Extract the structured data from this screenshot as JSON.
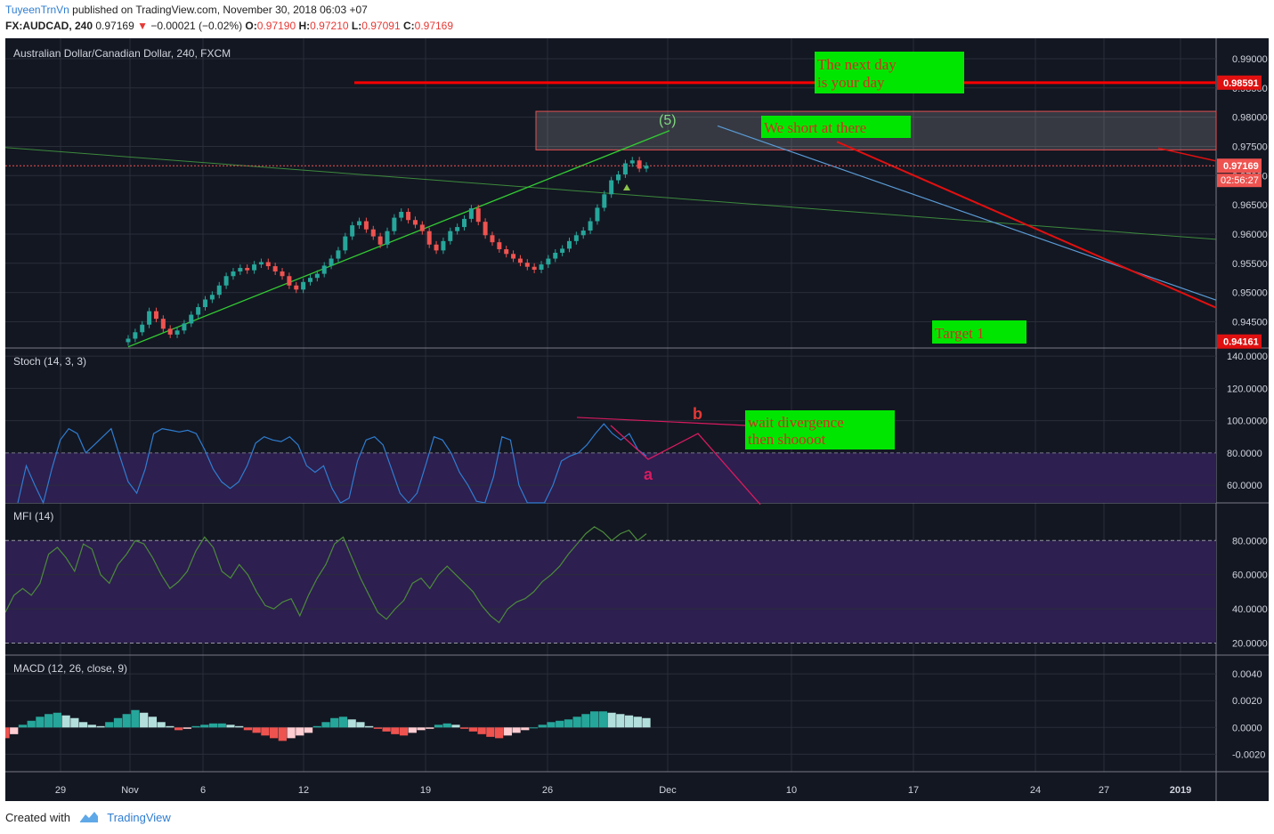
{
  "header": {
    "author": "TuyeenTrnVn",
    "published": "published on TradingView.com, November 30, 2018 06:03 +07",
    "symbol": "FX:AUDCAD, 240",
    "last": "0.97169",
    "arrow": "▼",
    "change": "−0.00021 (−0.02%)",
    "open_label": "O:",
    "open": "0.97190",
    "high_label": "H:",
    "high": "0.97210",
    "low_label": "L:",
    "low": "0.97091",
    "close_label": "C:",
    "close": "0.97169"
  },
  "footer": {
    "created": "Created with",
    "brand": "TradingView"
  },
  "colors": {
    "background": "#131722",
    "grid": "#2a2e39",
    "up": "#26a69a",
    "down": "#ef5350",
    "red_line": "#ff0000",
    "green_line": "#33cc33",
    "blue_line": "#5b9bd5",
    "stoch": "#2f7dd1",
    "mfi": "#4b8b3b",
    "band": "#2d1f4f",
    "note_bg": "#00e600",
    "note_text": "#d03020"
  },
  "chart_data": [
    {
      "type": "candlestick",
      "title": "Australian Dollar/Canadian Dollar, 240, FXCM",
      "ylim": [
        0.9405,
        0.9935
      ],
      "x_ticks": [
        "29",
        "Nov",
        "6",
        "12",
        "19",
        "26",
        "Dec",
        "10",
        "17",
        "24",
        "27",
        "2019"
      ],
      "y_ticks": [
        "0.99000",
        "0.98500",
        "0.98000",
        "0.97500",
        "0.97000",
        "0.96500",
        "0.96000",
        "0.95500",
        "0.95000",
        "0.94500"
      ],
      "price_labels": {
        "current": "0.97169",
        "countdown": "02:56:27",
        "resistance": "0.98591",
        "target": "0.94161"
      },
      "candles_close": [
        0.9421,
        0.9432,
        0.9445,
        0.9468,
        0.9455,
        0.9438,
        0.9428,
        0.9435,
        0.9447,
        0.9462,
        0.9475,
        0.9488,
        0.9496,
        0.9512,
        0.9528,
        0.9536,
        0.9542,
        0.9538,
        0.9548,
        0.9552,
        0.9545,
        0.9536,
        0.9528,
        0.9512,
        0.9505,
        0.9518,
        0.9525,
        0.9532,
        0.9546,
        0.9558,
        0.9572,
        0.9596,
        0.9615,
        0.9622,
        0.9608,
        0.9596,
        0.9582,
        0.9605,
        0.9628,
        0.9638,
        0.9624,
        0.9616,
        0.9605,
        0.9582,
        0.9572,
        0.9588,
        0.9605,
        0.9612,
        0.9626,
        0.9644,
        0.9621,
        0.9598,
        0.9586,
        0.9574,
        0.9566,
        0.9558,
        0.9551,
        0.9544,
        0.9539,
        0.9548,
        0.9558,
        0.9568,
        0.9575,
        0.9588,
        0.9598,
        0.9606,
        0.9622,
        0.9645,
        0.9668,
        0.9692,
        0.9702,
        0.9721,
        0.9726,
        0.9712,
        0.9717
      ],
      "annotations": [
        {
          "text": "(5)"
        },
        {
          "text": "The next day is your day"
        },
        {
          "text": "We short at there"
        },
        {
          "text": "Target 1"
        }
      ]
    },
    {
      "type": "line",
      "title": "Stoch (14, 3, 3)",
      "ylim": [
        49,
        145
      ],
      "y_ticks": [
        "140.0000",
        "120.0000",
        "100.0000",
        "80.0000",
        "60.0000"
      ],
      "band": [
        20,
        80
      ],
      "series": [
        {
          "values": [
            45,
            72,
            60,
            42,
            70,
            88,
            95,
            92,
            80,
            85,
            90,
            95,
            78,
            62,
            55,
            70,
            92,
            95,
            94,
            93,
            94,
            92,
            82,
            70,
            62,
            58,
            62,
            72,
            86,
            90,
            88,
            87,
            90,
            85,
            72,
            68,
            72,
            58,
            40,
            52,
            75,
            88,
            90,
            85,
            70,
            55,
            44,
            55,
            72,
            90,
            88,
            80,
            68,
            60,
            50,
            40,
            65,
            90,
            88,
            60,
            35,
            40,
            48,
            60,
            75,
            78,
            80,
            85,
            92,
            98,
            92,
            88,
            92,
            82,
            78
          ]
        }
      ],
      "annotations": [
        {
          "text": "b"
        },
        {
          "text": "a"
        },
        {
          "text": "wait divergence then shoooot"
        }
      ]
    },
    {
      "type": "line",
      "title": "MFI (14)",
      "ylim": [
        13,
        102
      ],
      "y_ticks": [
        "80.0000",
        "60.0000",
        "40.0000",
        "20.0000"
      ],
      "band": [
        20,
        80
      ],
      "series": [
        {
          "values": [
            38,
            48,
            52,
            48,
            55,
            72,
            76,
            70,
            62,
            78,
            75,
            60,
            55,
            66,
            72,
            80,
            78,
            70,
            60,
            52,
            56,
            62,
            74,
            82,
            76,
            62,
            58,
            66,
            60,
            50,
            42,
            40,
            44,
            46,
            36,
            48,
            58,
            66,
            78,
            82,
            70,
            58,
            48,
            38,
            34,
            40,
            45,
            55,
            58,
            52,
            60,
            65,
            60,
            55,
            50,
            42,
            36,
            32,
            40,
            44,
            46,
            50,
            56,
            60,
            65,
            72,
            78,
            84,
            88,
            85,
            80,
            84,
            86,
            80,
            84
          ]
        }
      ]
    },
    {
      "type": "bar",
      "title": "MACD (12, 26, close, 9)",
      "ylim": [
        -0.0033,
        0.0054
      ],
      "y_ticks": [
        "0.0040",
        "0.0020",
        "0.0000",
        "-0.0020"
      ],
      "values": [
        -0.0008,
        -0.0005,
        0.0002,
        0.0005,
        0.0008,
        0.001,
        0.0011,
        0.0009,
        0.0007,
        0.0004,
        0.0002,
        0.0001,
        0.0004,
        0.0007,
        0.001,
        0.0013,
        0.0011,
        0.0008,
        0.0004,
        0.0001,
        -0.0002,
        -0.0001,
        0.0001,
        0.0002,
        0.0003,
        0.0003,
        0.0002,
        0.0001,
        -0.0002,
        -0.0004,
        -0.0006,
        -0.0008,
        -0.001,
        -0.0008,
        -0.0006,
        -0.0004,
        0.0001,
        0.0004,
        0.0007,
        0.0008,
        0.0006,
        0.0004,
        0.0001,
        -0.0001,
        -0.0003,
        -0.0005,
        -0.0006,
        -0.0004,
        -0.0002,
        -0.0001,
        0.0002,
        0.0003,
        0.0002,
        -0.0001,
        -0.0003,
        -0.0005,
        -0.0007,
        -0.0008,
        -0.0006,
        -0.0004,
        -0.0002,
        0.0,
        0.0002,
        0.0004,
        0.0005,
        0.0006,
        0.0008,
        0.001,
        0.0012,
        0.0012,
        0.0011,
        0.001,
        0.0009,
        0.0008,
        0.0007
      ]
    }
  ]
}
